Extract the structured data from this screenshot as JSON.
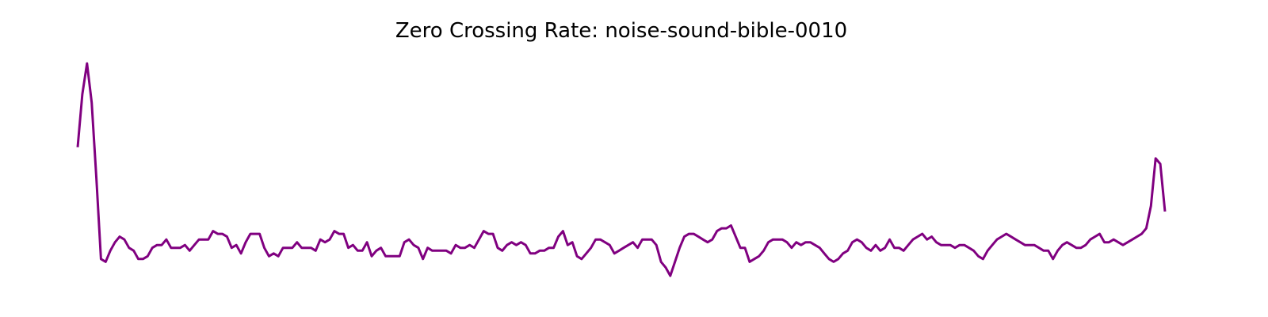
{
  "chart_data": {
    "type": "line",
    "title": "Zero Crossing Rate: noise-sound-bible-0010",
    "xlabel": "",
    "ylabel": "",
    "axes": "off",
    "grid": false,
    "line_color": "#800080",
    "series": [
      {
        "values": [
          0.42,
          0.61,
          0.72,
          0.58,
          0.31,
          0.02,
          0.01,
          0.05,
          0.08,
          0.1,
          0.09,
          0.06,
          0.05,
          0.02,
          0.02,
          0.03,
          0.06,
          0.07,
          0.07,
          0.09,
          0.06,
          0.06,
          0.06,
          0.07,
          0.05,
          0.07,
          0.09,
          0.09,
          0.09,
          0.12,
          0.11,
          0.11,
          0.1,
          0.06,
          0.07,
          0.04,
          0.08,
          0.11,
          0.11,
          0.11,
          0.06,
          0.03,
          0.04,
          0.03,
          0.06,
          0.06,
          0.06,
          0.08,
          0.06,
          0.06,
          0.06,
          0.05,
          0.09,
          0.08,
          0.09,
          0.12,
          0.11,
          0.11,
          0.06,
          0.07,
          0.05,
          0.05,
          0.08,
          0.03,
          0.05,
          0.06,
          0.03,
          0.03,
          0.03,
          0.03,
          0.08,
          0.09,
          0.07,
          0.06,
          0.02,
          0.06,
          0.05,
          0.05,
          0.05,
          0.05,
          0.04,
          0.07,
          0.06,
          0.06,
          0.07,
          0.06,
          0.09,
          0.12,
          0.11,
          0.11,
          0.06,
          0.05,
          0.07,
          0.08,
          0.07,
          0.08,
          0.07,
          0.04,
          0.04,
          0.05,
          0.05,
          0.06,
          0.06,
          0.1,
          0.12,
          0.07,
          0.08,
          0.03,
          0.02,
          0.04,
          0.06,
          0.09,
          0.09,
          0.08,
          0.07,
          0.04,
          0.05,
          0.06,
          0.07,
          0.08,
          0.06,
          0.09,
          0.09,
          0.09,
          0.07,
          0.01,
          -0.01,
          -0.04,
          0.01,
          0.06,
          0.1,
          0.11,
          0.11,
          0.1,
          0.09,
          0.08,
          0.09,
          0.12,
          0.13,
          0.13,
          0.14,
          0.1,
          0.06,
          0.06,
          0.01,
          0.02,
          0.03,
          0.05,
          0.08,
          0.09,
          0.09,
          0.09,
          0.08,
          0.06,
          0.08,
          0.07,
          0.08,
          0.08,
          0.07,
          0.06,
          0.04,
          0.02,
          0.01,
          0.02,
          0.04,
          0.05,
          0.08,
          0.09,
          0.08,
          0.06,
          0.05,
          0.07,
          0.05,
          0.06,
          0.09,
          0.06,
          0.06,
          0.05,
          0.07,
          0.09,
          0.1,
          0.11,
          0.09,
          0.1,
          0.08,
          0.07,
          0.07,
          0.07,
          0.06,
          0.07,
          0.07,
          0.06,
          0.05,
          0.03,
          0.02,
          0.05,
          0.07,
          0.09,
          0.1,
          0.11,
          0.1,
          0.09,
          0.08,
          0.07,
          0.07,
          0.07,
          0.06,
          0.05,
          0.05,
          0.02,
          0.05,
          0.07,
          0.08,
          0.07,
          0.06,
          0.06,
          0.07,
          0.09,
          0.1,
          0.11,
          0.08,
          0.08,
          0.09,
          0.08,
          0.07,
          0.08,
          0.09,
          0.1,
          0.11,
          0.13,
          0.21,
          0.38,
          0.36,
          0.19
        ]
      }
    ]
  }
}
